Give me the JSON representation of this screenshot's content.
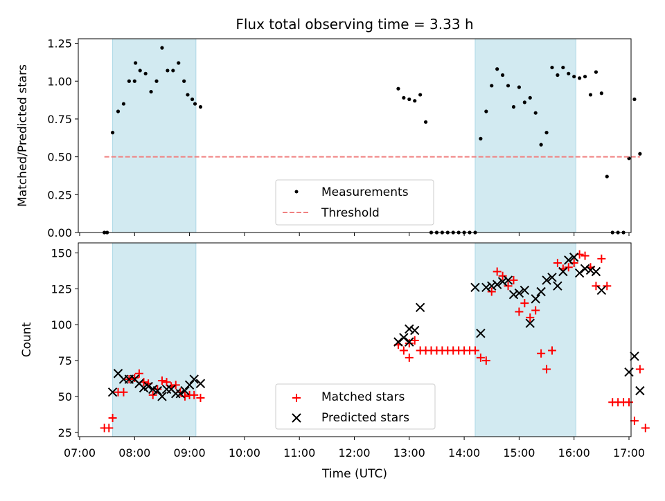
{
  "title": "Flux total observing time = 3.33 h",
  "chart_data": [
    {
      "type": "scatter",
      "ylabel": "Matched/Predicted stars",
      "ylim": [
        0,
        1.28
      ],
      "xlim": [
        "07:00",
        "17:05"
      ],
      "yticks": [
        0.0,
        0.25,
        0.5,
        0.75,
        1.0,
        1.25
      ],
      "ytick_labels": [
        "0.00",
        "0.25",
        "0.50",
        "0.75",
        "1.00",
        "1.25"
      ],
      "shaded_spans": [
        [
          "07:36",
          "09:07"
        ],
        [
          "14:12",
          "16:02"
        ]
      ],
      "series": [
        {
          "name": "Measurements",
          "color": "#000000",
          "marker": "dot",
          "points": [
            [
              "07:27",
              0.0
            ],
            [
              "07:30",
              0.0
            ],
            [
              "07:36",
              0.66
            ],
            [
              "07:42",
              0.8
            ],
            [
              "07:48",
              0.85
            ],
            [
              "07:54",
              1.0
            ],
            [
              "08:00",
              1.0
            ],
            [
              "08:01",
              1.12
            ],
            [
              "08:06",
              1.07
            ],
            [
              "08:12",
              1.05
            ],
            [
              "08:18",
              0.93
            ],
            [
              "08:24",
              1.0
            ],
            [
              "08:30",
              1.22
            ],
            [
              "08:36",
              1.07
            ],
            [
              "08:42",
              1.07
            ],
            [
              "08:48",
              1.12
            ],
            [
              "08:54",
              1.0
            ],
            [
              "08:58",
              0.91
            ],
            [
              "09:03",
              0.88
            ],
            [
              "09:06",
              0.85
            ],
            [
              "09:12",
              0.83
            ],
            [
              "12:48",
              0.95
            ],
            [
              "12:54",
              0.89
            ],
            [
              "13:00",
              0.88
            ],
            [
              "13:06",
              0.87
            ],
            [
              "13:12",
              0.91
            ],
            [
              "13:18",
              0.73
            ],
            [
              "13:24",
              0.0
            ],
            [
              "13:30",
              0.0
            ],
            [
              "13:36",
              0.0
            ],
            [
              "13:42",
              0.0
            ],
            [
              "13:48",
              0.0
            ],
            [
              "13:54",
              0.0
            ],
            [
              "14:00",
              0.0
            ],
            [
              "14:06",
              0.0
            ],
            [
              "14:12",
              0.0
            ],
            [
              "14:18",
              0.62
            ],
            [
              "14:24",
              0.8
            ],
            [
              "14:30",
              0.97
            ],
            [
              "14:36",
              1.08
            ],
            [
              "14:42",
              1.04
            ],
            [
              "14:48",
              0.97
            ],
            [
              "14:54",
              0.83
            ],
            [
              "15:00",
              0.96
            ],
            [
              "15:06",
              0.86
            ],
            [
              "15:12",
              0.89
            ],
            [
              "15:18",
              0.79
            ],
            [
              "15:24",
              0.58
            ],
            [
              "15:30",
              0.66
            ],
            [
              "15:36",
              1.09
            ],
            [
              "15:42",
              1.04
            ],
            [
              "15:48",
              1.09
            ],
            [
              "15:54",
              1.05
            ],
            [
              "16:00",
              1.03
            ],
            [
              "16:06",
              1.02
            ],
            [
              "16:12",
              1.03
            ],
            [
              "16:18",
              0.91
            ],
            [
              "16:24",
              1.06
            ],
            [
              "16:30",
              0.92
            ],
            [
              "16:36",
              0.37
            ],
            [
              "16:42",
              0.0
            ],
            [
              "16:48",
              0.0
            ],
            [
              "16:54",
              0.0
            ],
            [
              "17:00",
              0.49
            ],
            [
              "17:06",
              0.88
            ],
            [
              "17:12",
              0.52
            ]
          ]
        },
        {
          "name": "Threshold",
          "color": "#f08080",
          "style": "dashed",
          "points": [
            [
              "07:27",
              0.5
            ],
            [
              "17:12",
              0.5
            ]
          ]
        }
      ]
    },
    {
      "type": "scatter",
      "xlabel": "Time (UTC)",
      "ylabel": "Count",
      "ylim": [
        22,
        157
      ],
      "xlim": [
        "07:00",
        "17:05"
      ],
      "yticks": [
        25,
        50,
        75,
        100,
        125,
        150
      ],
      "ytick_labels": [
        "25",
        "50",
        "75",
        "100",
        "125",
        "150"
      ],
      "xticks": [
        "07:00",
        "08:00",
        "09:00",
        "10:00",
        "11:00",
        "12:00",
        "13:00",
        "14:00",
        "15:00",
        "16:00",
        "17:00"
      ],
      "shaded_spans": [
        [
          "07:36",
          "09:07"
        ],
        [
          "14:12",
          "16:02"
        ]
      ],
      "series": [
        {
          "name": "Matched stars",
          "color": "#ff0000",
          "marker": "plus",
          "points": [
            [
              "07:27",
              28
            ],
            [
              "07:32",
              28
            ],
            [
              "07:36",
              35
            ],
            [
              "07:42",
              53
            ],
            [
              "07:48",
              53
            ],
            [
              "07:54",
              62
            ],
            [
              "08:00",
              63
            ],
            [
              "08:05",
              66
            ],
            [
              "08:10",
              60
            ],
            [
              "08:15",
              59
            ],
            [
              "08:20",
              51
            ],
            [
              "08:25",
              55
            ],
            [
              "08:30",
              61
            ],
            [
              "08:35",
              60
            ],
            [
              "08:40",
              57
            ],
            [
              "08:45",
              58
            ],
            [
              "08:50",
              53
            ],
            [
              "08:55",
              50
            ],
            [
              "09:00",
              51
            ],
            [
              "09:05",
              51
            ],
            [
              "09:12",
              49
            ],
            [
              "12:48",
              86
            ],
            [
              "12:54",
              82
            ],
            [
              "13:00",
              87
            ],
            [
              "13:00",
              77
            ],
            [
              "13:06",
              89
            ],
            [
              "13:12",
              82
            ],
            [
              "13:18",
              82
            ],
            [
              "13:24",
              82
            ],
            [
              "13:30",
              82
            ],
            [
              "13:36",
              82
            ],
            [
              "13:42",
              82
            ],
            [
              "13:48",
              82
            ],
            [
              "13:54",
              82
            ],
            [
              "14:00",
              82
            ],
            [
              "14:06",
              82
            ],
            [
              "14:12",
              82
            ],
            [
              "14:18",
              77
            ],
            [
              "14:24",
              75
            ],
            [
              "14:30",
              123
            ],
            [
              "14:36",
              137
            ],
            [
              "14:42",
              134
            ],
            [
              "14:48",
              127
            ],
            [
              "14:54",
              131
            ],
            [
              "15:00",
              109
            ],
            [
              "15:06",
              115
            ],
            [
              "15:12",
              105
            ],
            [
              "15:18",
              110
            ],
            [
              "15:24",
              80
            ],
            [
              "15:30",
              69
            ],
            [
              "15:36",
              82
            ],
            [
              "15:42",
              143
            ],
            [
              "15:48",
              139
            ],
            [
              "15:54",
              140
            ],
            [
              "16:00",
              143
            ],
            [
              "16:06",
              149
            ],
            [
              "16:12",
              148
            ],
            [
              "16:18",
              140
            ],
            [
              "16:24",
              127
            ],
            [
              "16:30",
              146
            ],
            [
              "16:36",
              127
            ],
            [
              "16:42",
              46
            ],
            [
              "16:48",
              46
            ],
            [
              "16:54",
              46
            ],
            [
              "17:00",
              46
            ],
            [
              "17:06",
              33
            ],
            [
              "17:12",
              69
            ],
            [
              "17:18",
              28
            ]
          ]
        },
        {
          "name": "Predicted stars",
          "color": "#000000",
          "marker": "x",
          "points": [
            [
              "07:36",
              53
            ],
            [
              "07:42",
              66
            ],
            [
              "07:48",
              62
            ],
            [
              "07:54",
              62
            ],
            [
              "08:00",
              62
            ],
            [
              "08:05",
              59
            ],
            [
              "08:10",
              56
            ],
            [
              "08:15",
              57
            ],
            [
              "08:20",
              55
            ],
            [
              "08:25",
              54
            ],
            [
              "08:30",
              50
            ],
            [
              "08:35",
              55
            ],
            [
              "08:40",
              55
            ],
            [
              "08:45",
              52
            ],
            [
              "08:50",
              52
            ],
            [
              "08:55",
              54
            ],
            [
              "09:00",
              58
            ],
            [
              "09:05",
              62
            ],
            [
              "09:12",
              59
            ],
            [
              "12:48",
              88
            ],
            [
              "12:54",
              91
            ],
            [
              "13:00",
              97
            ],
            [
              "13:00",
              88
            ],
            [
              "13:06",
              96
            ],
            [
              "13:12",
              112
            ],
            [
              "14:12",
              126
            ],
            [
              "14:18",
              94
            ],
            [
              "14:24",
              126
            ],
            [
              "14:30",
              127
            ],
            [
              "14:36",
              128
            ],
            [
              "14:42",
              130
            ],
            [
              "14:48",
              131
            ],
            [
              "14:54",
              121
            ],
            [
              "15:00",
              122
            ],
            [
              "15:06",
              124
            ],
            [
              "15:12",
              101
            ],
            [
              "15:18",
              118
            ],
            [
              "15:24",
              123
            ],
            [
              "15:30",
              131
            ],
            [
              "15:36",
              133
            ],
            [
              "15:42",
              127
            ],
            [
              "15:48",
              137
            ],
            [
              "15:54",
              145
            ],
            [
              "16:00",
              147
            ],
            [
              "16:06",
              136
            ],
            [
              "16:12",
              139
            ],
            [
              "16:18",
              138
            ],
            [
              "16:24",
              137
            ],
            [
              "16:30",
              124
            ],
            [
              "17:00",
              67
            ],
            [
              "17:06",
              78
            ],
            [
              "17:12",
              54
            ]
          ]
        }
      ]
    }
  ]
}
